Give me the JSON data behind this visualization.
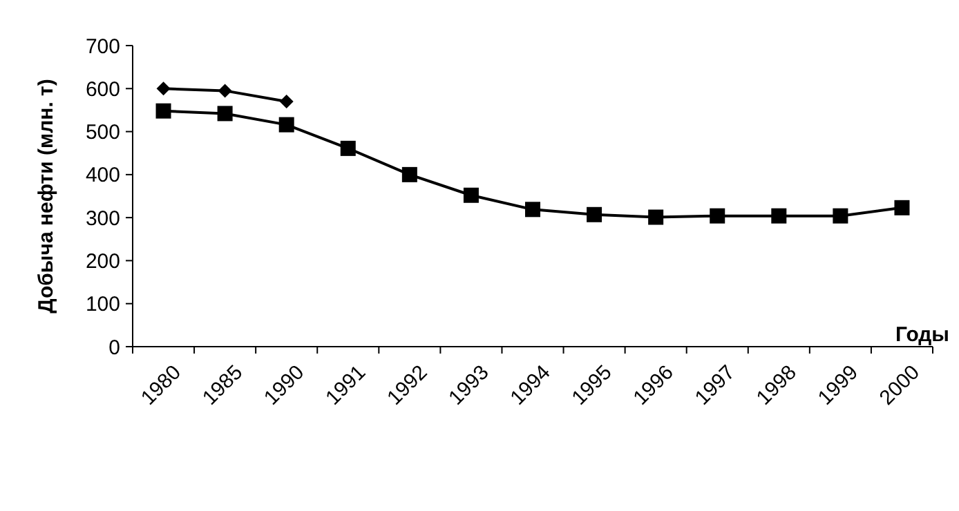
{
  "chart_data": {
    "type": "line",
    "xlabel": "Годы",
    "ylabel": "Добыча нефти (млн. т)",
    "categories": [
      "1980",
      "1985",
      "1990",
      "1991",
      "1992",
      "1993",
      "1994",
      "1995",
      "1996",
      "1997",
      "1998",
      "1999",
      "2000"
    ],
    "series": [
      {
        "color": "#000000",
        "marker": "diamond",
        "values": [
          600,
          595,
          570,
          null,
          null,
          null,
          null,
          null,
          null,
          null,
          null,
          null,
          null
        ]
      },
      {
        "color": "#000000",
        "marker": "square",
        "values": [
          548,
          542,
          516,
          461,
          400,
          352,
          319,
          307,
          301,
          304,
          304,
          304,
          323
        ]
      }
    ],
    "ylim": [
      0,
      700
    ],
    "yticks": [
      0,
      100,
      200,
      300,
      400,
      500,
      600,
      700
    ],
    "grid": false,
    "line_style": "solid"
  }
}
